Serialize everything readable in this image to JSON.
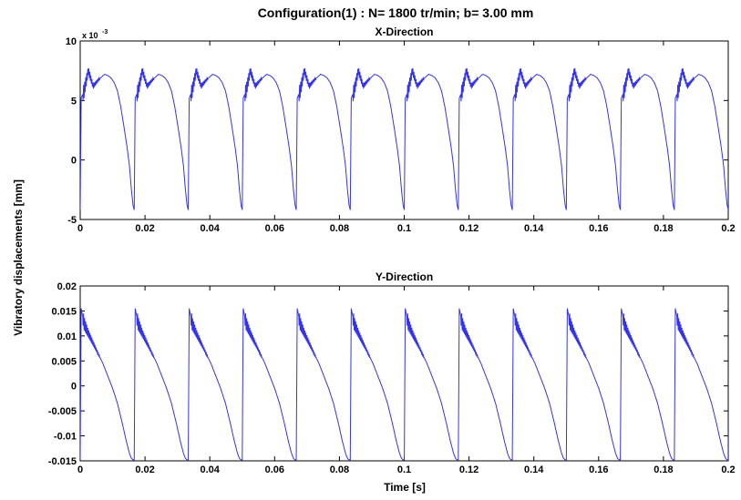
{
  "figure": {
    "suptitle": "Configuration(1) :  N= 1800 tr/min; b= 3.00 mm",
    "ylabel": "Vibratory displacements [mm]",
    "xlabel": "Time [s]"
  },
  "chart_data": [
    {
      "type": "line",
      "title": "X-Direction",
      "xlim": [
        0,
        0.2
      ],
      "ylim": [
        -0.005,
        0.01
      ],
      "xticks": [
        0,
        0.02,
        0.04,
        0.06,
        0.08,
        0.1,
        0.12,
        0.14,
        0.16,
        0.18,
        0.2
      ],
      "xtick_labels": [
        "0",
        "0.02",
        "0.04",
        "0.06",
        "0.08",
        "0.1",
        "0.12",
        "0.14",
        "0.16",
        "0.18",
        "0.2"
      ],
      "yticks": [
        -0.005,
        0,
        0.005,
        0.01
      ],
      "ytick_labels": [
        "-5",
        "0",
        "5",
        "10"
      ],
      "y_multiplier": "x 10",
      "y_exponent": "-3",
      "line_color": "#3333ee",
      "period": 0.01667,
      "series": [
        {
          "x": [
            0,
            0.0003,
            0.0012,
            0.0025,
            0.004,
            0.0055,
            0.0075,
            0.0085,
            0.0095,
            0.0105,
            0.0115,
            0.0125,
            0.0135,
            0.0145,
            0.0152,
            0.0158,
            0.0163,
            0.01667
          ],
          "y": [
            -0.0042,
            0.0052,
            0.0058,
            0.0075,
            0.0062,
            0.0067,
            0.0072,
            0.0071,
            0.0069,
            0.0065,
            0.0058,
            0.0045,
            0.0028,
            0.001,
            -0.0005,
            -0.0025,
            -0.0038,
            -0.0042
          ]
        }
      ]
    },
    {
      "type": "line",
      "title": "Y-Direction",
      "xlim": [
        0,
        0.2
      ],
      "ylim": [
        -0.015,
        0.02
      ],
      "xticks": [
        0,
        0.02,
        0.04,
        0.06,
        0.08,
        0.1,
        0.12,
        0.14,
        0.16,
        0.18,
        0.2
      ],
      "xtick_labels": [
        "0",
        "0.02",
        "0.04",
        "0.06",
        "0.08",
        "0.1",
        "0.12",
        "0.14",
        "0.16",
        "0.18",
        "0.2"
      ],
      "yticks": [
        -0.015,
        -0.01,
        -0.005,
        0,
        0.005,
        0.01,
        0.015,
        0.02
      ],
      "ytick_labels": [
        "-0.015",
        "-0.01",
        "-0.005",
        "0",
        "0.005",
        "0.01",
        "0.015",
        "0.02"
      ],
      "line_color": "#3333ee",
      "period": 0.01667,
      "series": [
        {
          "x": [
            0,
            0.0003,
            0.0012,
            0.0025,
            0.004,
            0.0055,
            0.007,
            0.0085,
            0.01,
            0.0115,
            0.013,
            0.0142,
            0.0152,
            0.0158,
            0.0163,
            0.01667
          ],
          "y": [
            -0.0148,
            0.0155,
            0.0125,
            0.0105,
            0.0085,
            0.0065,
            0.0045,
            0.002,
            -0.0005,
            -0.0035,
            -0.0075,
            -0.011,
            -0.0135,
            -0.0145,
            -0.0148,
            -0.0148
          ]
        }
      ]
    }
  ]
}
